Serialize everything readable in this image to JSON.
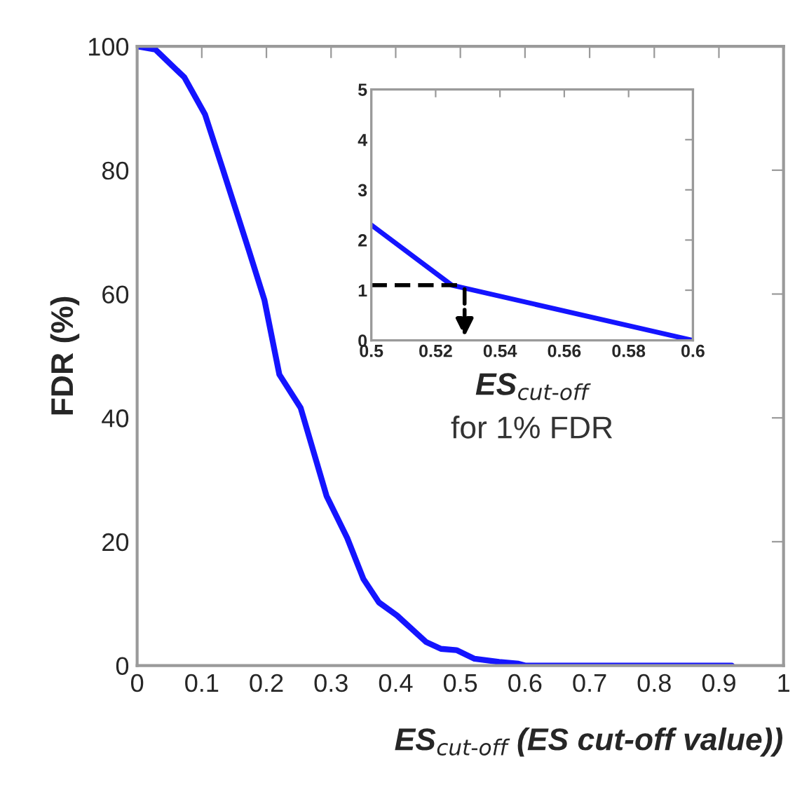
{
  "chart_data": [
    {
      "type": "line",
      "xlabel": "ES$_{cut-off}$ (ES cut-off value))",
      "ylabel": "FDR (%)",
      "series": [
        {
          "color": "#1414ff",
          "x": [
            0,
            0.028,
            0.073,
            0.105,
            0.133,
            0.173,
            0.197,
            0.22,
            0.253,
            0.293,
            0.325,
            0.35,
            0.374,
            0.402,
            0.447,
            0.47,
            0.494,
            0.522,
            0.56,
            0.59,
            0.6,
            0.92
          ],
          "values": [
            100,
            99.5,
            95,
            89,
            80,
            67,
            59,
            47,
            41.6,
            27.4,
            20.6,
            14,
            10.2,
            8.1,
            3.8,
            2.7,
            2.5,
            1.1,
            0.6,
            0.3,
            0,
            0
          ]
        }
      ],
      "xlim": [
        0,
        1
      ],
      "ylim": [
        0,
        100
      ],
      "xticks": [
        0,
        0.1,
        0.2,
        0.3,
        0.4,
        0.5,
        0.6,
        0.7,
        0.8,
        0.9,
        1
      ],
      "yticks": [
        0,
        20,
        40,
        60,
        80,
        100
      ],
      "grid": false
    },
    {
      "type": "line",
      "xlabel": "ES$_{cut-off}$",
      "annotations": [
        "for 1% FDR"
      ],
      "series": [
        {
          "color": "#1414ff",
          "x": [
            0.5,
            0.525,
            0.6
          ],
          "values": [
            2.3,
            1.1,
            0
          ]
        }
      ],
      "xlim": [
        0.5,
        0.6
      ],
      "ylim": [
        0,
        5
      ],
      "xticks": [
        0.5,
        0.52,
        0.54,
        0.56,
        0.58,
        0.6
      ],
      "yticks": [
        0,
        1,
        2,
        3,
        4,
        5
      ],
      "grid": false
    }
  ]
}
